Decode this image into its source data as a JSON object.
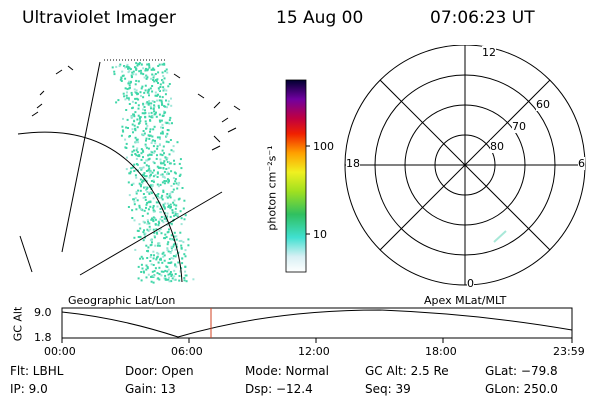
{
  "header": {
    "instrument": "Ultraviolet Imager",
    "date": "15 Aug 00",
    "time": "07:06:23 UT"
  },
  "colorbar": {
    "unit_label": "photon cm⁻²s⁻¹",
    "ticks": [
      "100",
      "10"
    ]
  },
  "polar": {
    "mlt_labels": {
      "top": "12",
      "left": "18",
      "right": "6",
      "bottom": "0"
    },
    "lat_labels": [
      "60",
      "70",
      "80"
    ]
  },
  "panels": {
    "left_caption": "Geographic Lat/Lon",
    "right_caption": "Apex MLat/MLT"
  },
  "altitude_plot": {
    "ylabel": "GC Alt",
    "ymax": "9.0",
    "ymin": "1.8",
    "xticks": [
      "00:00",
      "06:00",
      "12:00",
      "18:00",
      "23:59"
    ]
  },
  "info": {
    "flt": "Flt: LBHL",
    "ip": "IP:  9.0",
    "door": "Door: Open",
    "gain": "Gain: 13",
    "mode": "Mode: Normal",
    "dsp": "Dsp:  −12.4",
    "gcalt": "GC Alt: 2.5 Re",
    "seq": "Seq: 39",
    "glat": "GLat: −79.8",
    "glon": "GLon: 250.0"
  },
  "colors": {
    "emission": "#3fd6a8",
    "marker": "#d04020",
    "ink": "#000000"
  }
}
